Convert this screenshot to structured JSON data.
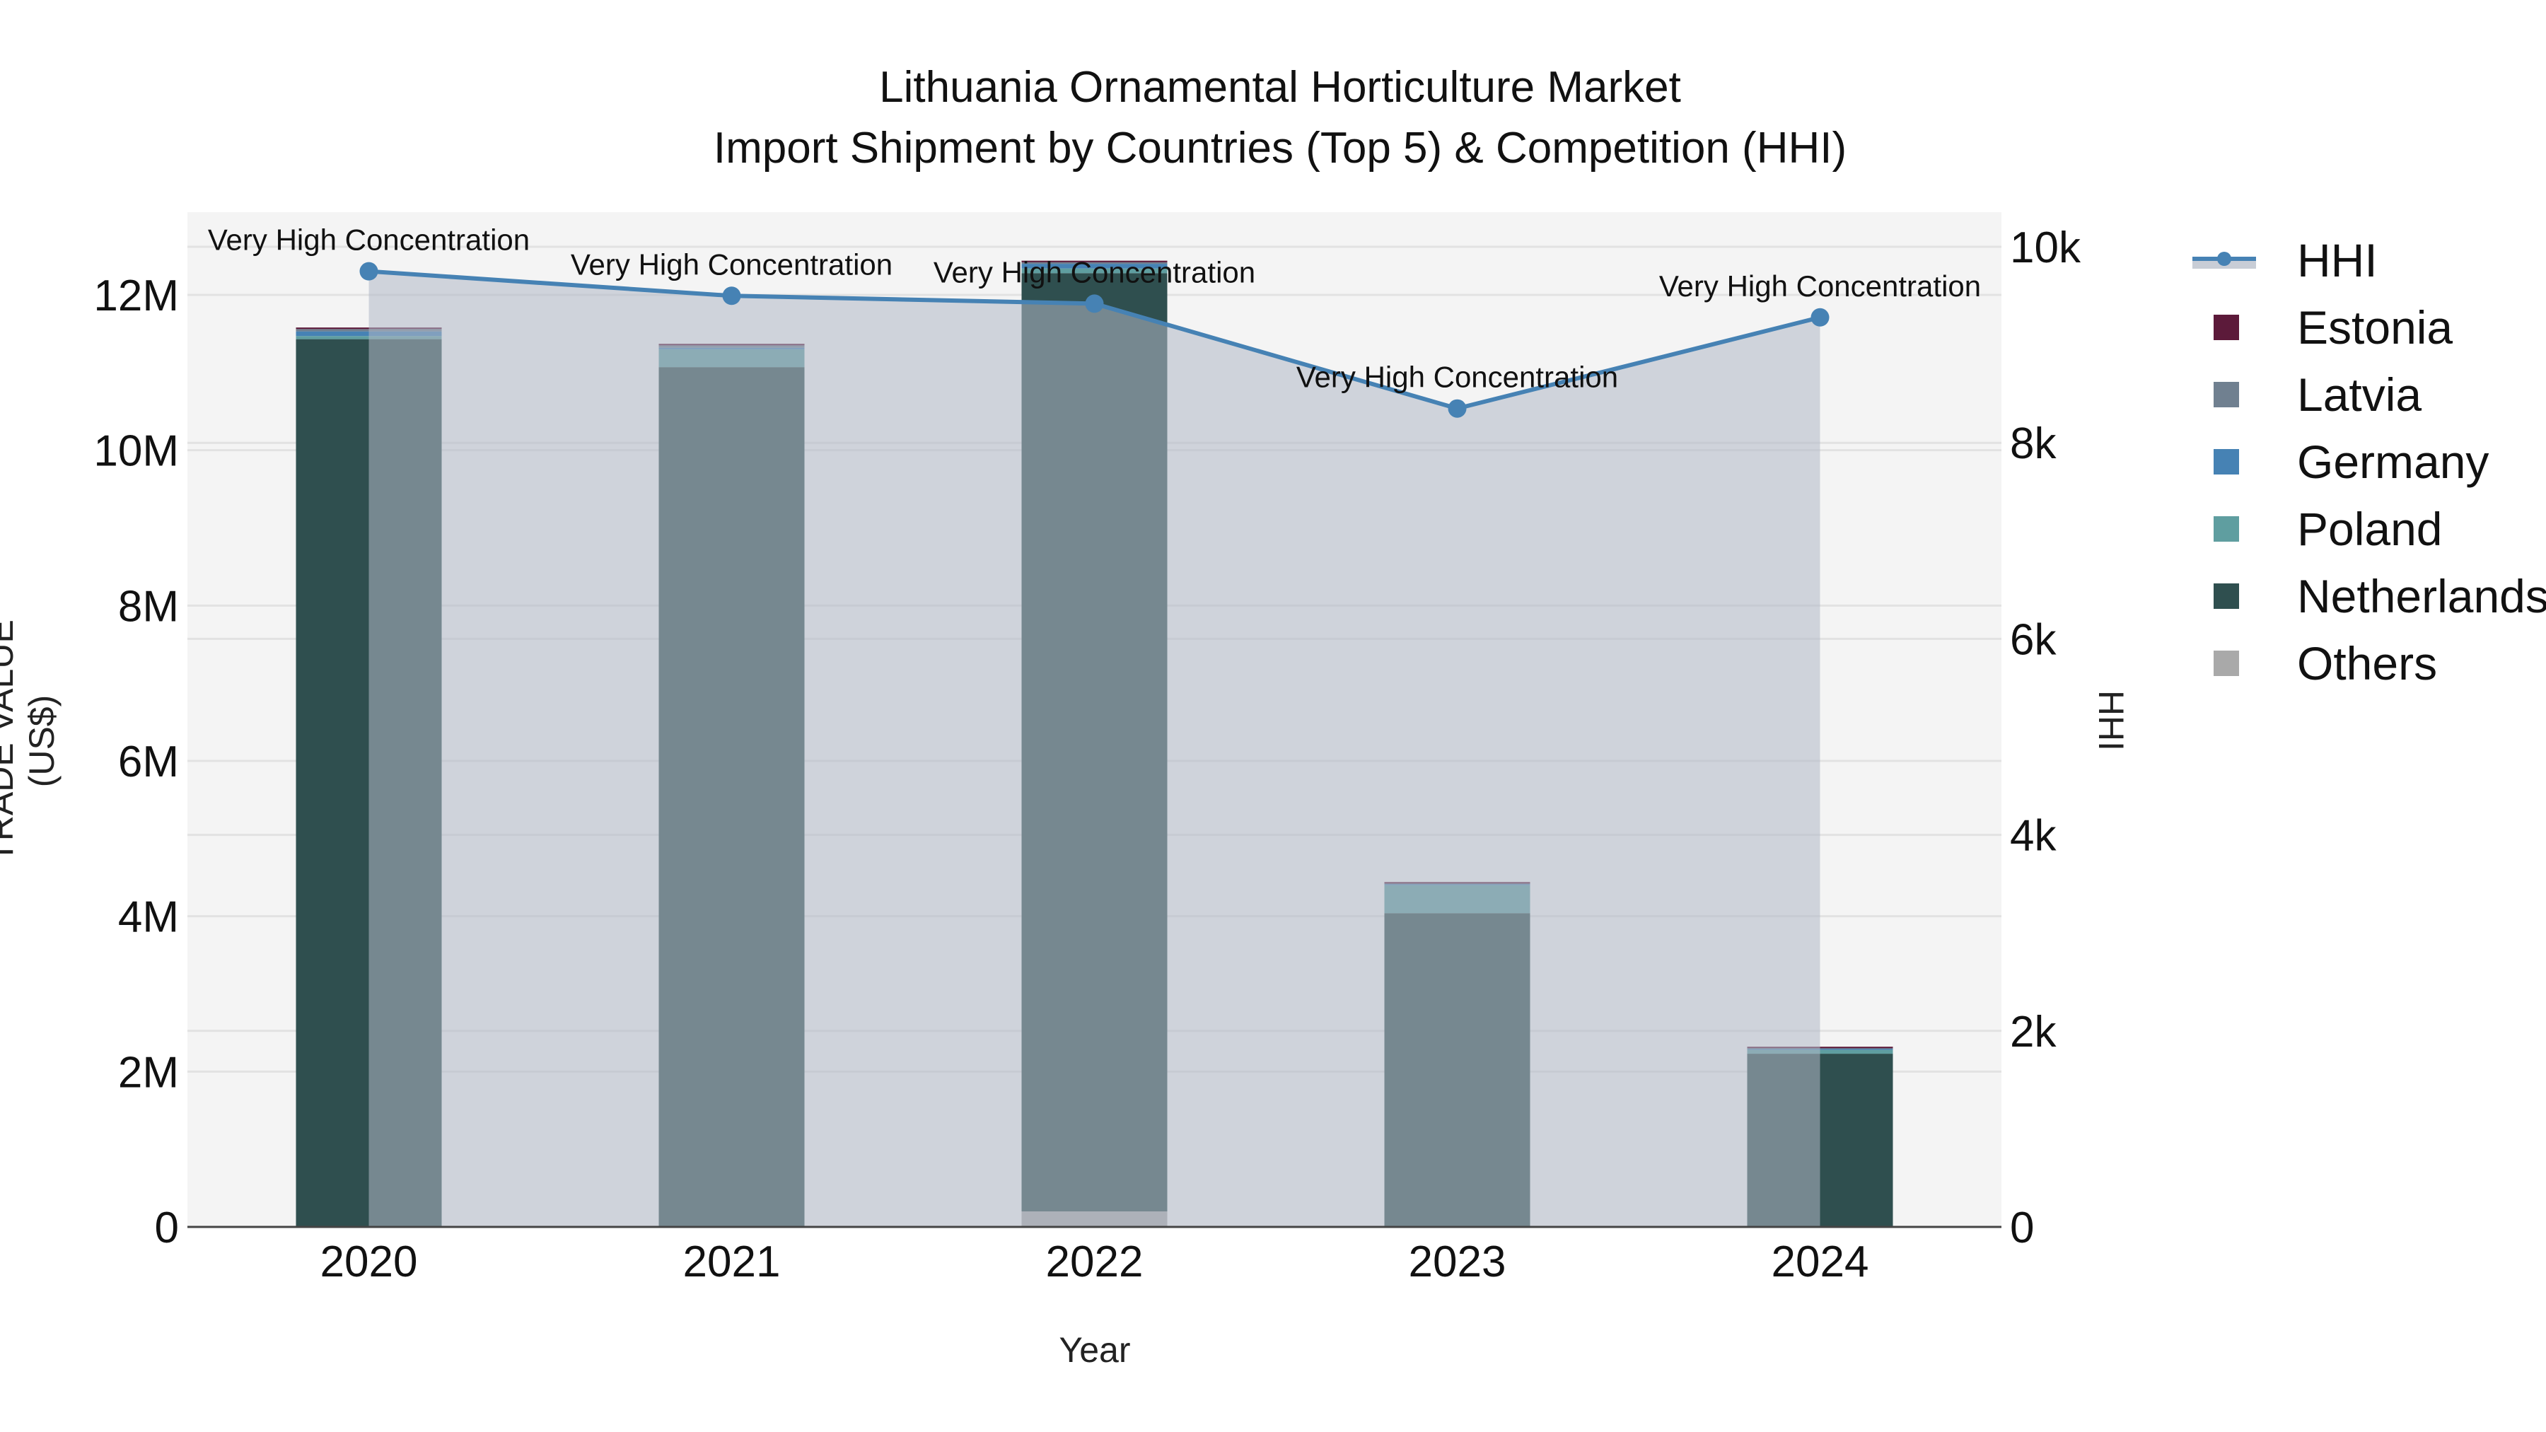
{
  "chart": {
    "title_line1": "Lithuania Ornamental Horticulture Market",
    "title_line2": "Import Shipment by Countries (Top 5) & Competition (HHI)",
    "xlabel": "Year",
    "ylabel_left": "TRADE VALUE (US$)",
    "ylabel_right": "HHI",
    "left_ticks": [
      "0",
      "2M",
      "4M",
      "6M",
      "8M",
      "10M",
      "12M"
    ],
    "right_ticks": [
      "0",
      "2k",
      "4k",
      "6k",
      "8k",
      "10k"
    ],
    "annotation": "Very High Concentration"
  },
  "legend": [
    {
      "name": "HHI",
      "type": "line",
      "color": "#4682B4"
    },
    {
      "name": "Estonia",
      "type": "bar",
      "color": "#5C1A3A"
    },
    {
      "name": "Latvia",
      "type": "bar",
      "color": "#708090"
    },
    {
      "name": "Germany",
      "type": "bar",
      "color": "#4682B4"
    },
    {
      "name": "Poland",
      "type": "bar",
      "color": "#5F9EA0"
    },
    {
      "name": "Netherlands",
      "type": "bar",
      "color": "#2F4F4F"
    },
    {
      "name": "Others",
      "type": "bar",
      "color": "#A9A9A9"
    }
  ],
  "chart_data": {
    "type": "bar",
    "stacked": true,
    "title": "Lithuania Ornamental Horticulture Market\nImport Shipment by Countries (Top 5) & Competition (HHI)",
    "xlabel": "Year",
    "ylabel": "TRADE VALUE (US$)",
    "y2label": "HHI",
    "categories": [
      "2020",
      "2021",
      "2022",
      "2023",
      "2024"
    ],
    "ylim": [
      0,
      13000000
    ],
    "y2lim": [
      0,
      10300
    ],
    "grid": true,
    "legend_position": "right",
    "series": [
      {
        "name": "Others",
        "color": "#A9A9A9",
        "values": [
          0,
          0,
          200000,
          0,
          0
        ]
      },
      {
        "name": "Netherlands",
        "color": "#2F4F4F",
        "values": [
          11430000,
          11070000,
          12080000,
          4040000,
          2230000
        ]
      },
      {
        "name": "Poland",
        "color": "#5F9EA0",
        "values": [
          40000,
          230000,
          60000,
          360000,
          50000
        ]
      },
      {
        "name": "Germany",
        "color": "#4682B4",
        "values": [
          60000,
          20000,
          60000,
          20000,
          20000
        ]
      },
      {
        "name": "Latvia",
        "color": "#708090",
        "values": [
          30000,
          30000,
          20000,
          10000,
          10000
        ]
      },
      {
        "name": "Estonia",
        "color": "#5C1A3A",
        "values": [
          20000,
          20000,
          20000,
          10000,
          10000
        ]
      }
    ],
    "line_series": {
      "name": "HHI",
      "axis": "y2",
      "color": "#4682B4",
      "fill": "tozeroy",
      "values": [
        9750,
        9500,
        9420,
        8350,
        9280
      ],
      "annotations": [
        "Very High Concentration",
        "Very High Concentration",
        "Very High Concentration",
        "Very High Concentration",
        "Very High Concentration"
      ]
    }
  }
}
